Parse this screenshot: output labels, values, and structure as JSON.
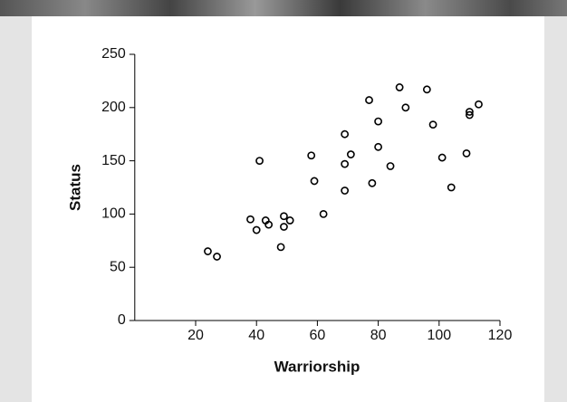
{
  "chart_data": {
    "type": "scatter",
    "x_label": "Warriorship",
    "y_label": "Status",
    "x": [
      24,
      27,
      38,
      40,
      43,
      44,
      41,
      48,
      49,
      49,
      51,
      58,
      59,
      62,
      69,
      69,
      69,
      71,
      77,
      78,
      80,
      80,
      84,
      87,
      89,
      96,
      98,
      101,
      104,
      109,
      110,
      110,
      113
    ],
    "y": [
      65,
      60,
      95,
      85,
      94,
      90,
      150,
      69,
      98,
      88,
      94,
      155,
      131,
      100,
      175,
      147,
      122,
      156,
      207,
      129,
      187,
      163,
      145,
      219,
      200,
      217,
      184,
      153,
      125,
      157,
      196,
      193,
      203
    ],
    "color": "#000000",
    "xlim": [
      0,
      120
    ],
    "xticks": [
      20,
      40,
      60,
      80,
      100,
      120
    ],
    "ylim": [
      0,
      250
    ],
    "yticks": [
      0,
      50,
      100,
      150,
      200,
      250
    ]
  }
}
